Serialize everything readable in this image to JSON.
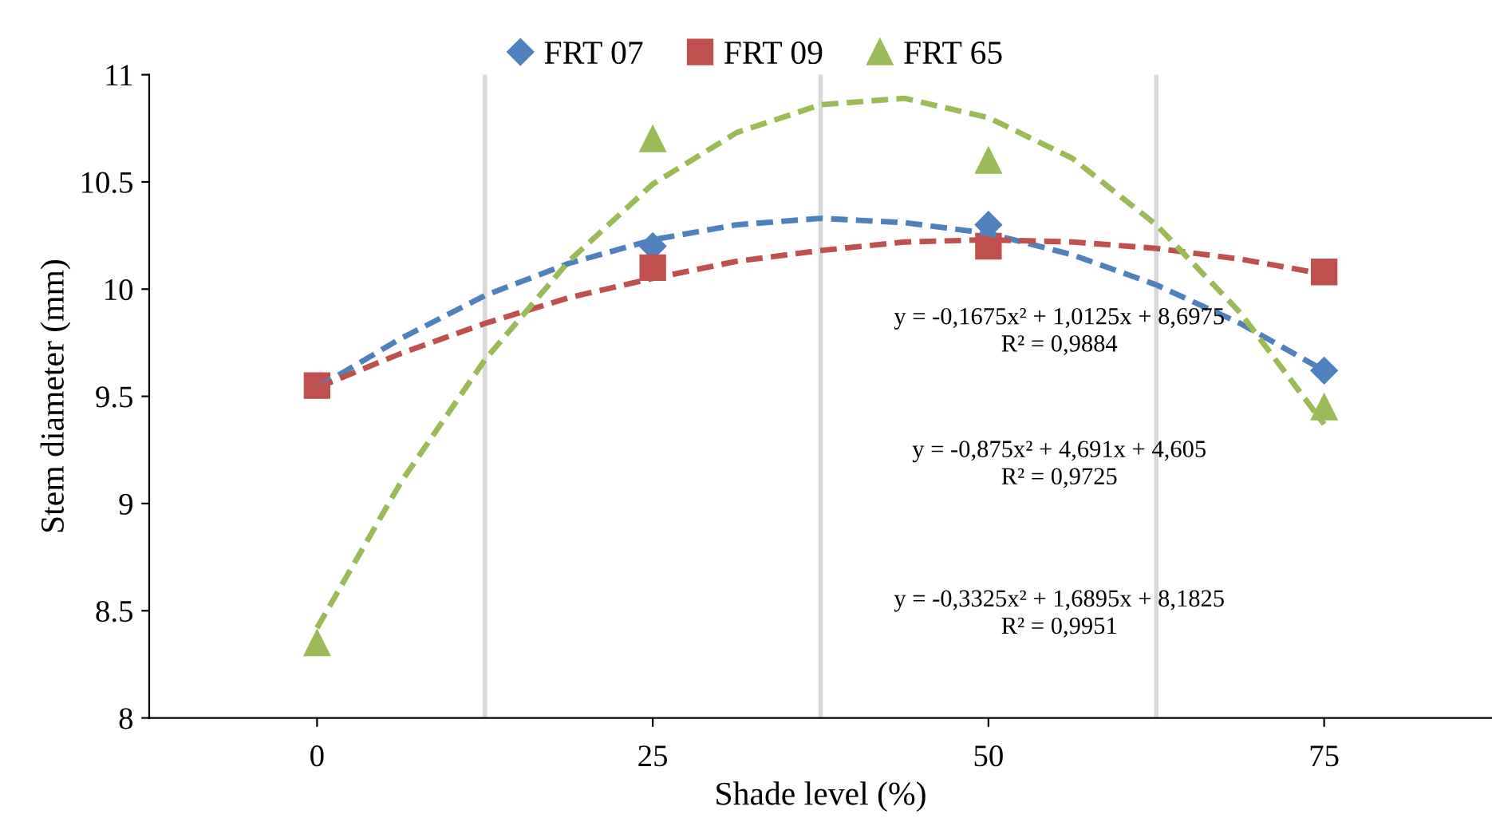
{
  "chart_data": {
    "type": "scatter",
    "xlabel": "Shade level (%)",
    "ylabel": "Stem diameter (mm)",
    "x": [
      0,
      25,
      50,
      75
    ],
    "xlim": [
      -12.5,
      87.5
    ],
    "xticks": [
      0,
      25,
      50,
      75
    ],
    "ylim": [
      8,
      11
    ],
    "yticks": [
      8,
      8.5,
      9,
      9.5,
      10,
      10.5,
      11
    ],
    "grid": false,
    "legend": "top",
    "ref_lines": [
      {
        "axis": "x",
        "value": 12.5,
        "color": "#d9d9d9"
      },
      {
        "axis": "x",
        "value": 37.5,
        "color": "#d9d9d9"
      },
      {
        "axis": "x",
        "value": 62.5,
        "color": "#d9d9d9"
      }
    ],
    "series": [
      {
        "name": "FRT 07",
        "marker": "diamond",
        "color": "#4f81bd",
        "values": [
          null,
          10.2,
          10.3,
          9.62
        ]
      },
      {
        "name": "FRT 09",
        "marker": "square",
        "color": "#c0504d",
        "values": [
          9.55,
          10.1,
          10.2,
          10.08
        ]
      },
      {
        "name": "FRT 65",
        "marker": "triangle",
        "color": "#9bbb59",
        "values": [
          8.35,
          10.7,
          10.6,
          9.45
        ]
      },
      {
        "type": "line",
        "line_style": "dashed",
        "color": "#4f81bd",
        "x": [
          0,
          6.25,
          12.5,
          18.75,
          25,
          31.25,
          37.5,
          43.75,
          50,
          56.25,
          62.5,
          68.75,
          75
        ],
        "values": [
          9.54,
          9.77,
          9.97,
          10.12,
          10.23,
          10.3,
          10.33,
          10.31,
          10.26,
          10.16,
          10.02,
          9.84,
          9.62
        ]
      },
      {
        "type": "line",
        "line_style": "dashed",
        "color": "#c0504d",
        "x": [
          0,
          6.25,
          12.5,
          18.75,
          25,
          31.25,
          37.5,
          43.75,
          50,
          56.25,
          62.5,
          68.75,
          75
        ],
        "values": [
          9.54,
          9.7,
          9.84,
          9.96,
          10.05,
          10.13,
          10.18,
          10.22,
          10.23,
          10.22,
          10.19,
          10.14,
          10.07
        ]
      },
      {
        "type": "line",
        "line_style": "dashed",
        "color": "#9bbb59",
        "x": [
          0,
          6.25,
          12.5,
          18.75,
          25,
          31.25,
          37.5,
          43.75,
          50,
          56.25,
          62.5,
          68.75,
          75
        ],
        "values": [
          8.42,
          9.1,
          9.67,
          10.13,
          10.49,
          10.73,
          10.86,
          10.89,
          10.8,
          10.61,
          10.3,
          9.89,
          9.37
        ]
      }
    ],
    "annotations": [
      "y = -0,1675x² + 1,0125x + 8,6975\nR² = 0,9884",
      "y = -0,875x² + 4,691x + 4,605\nR² = 0,9725",
      "y = -0,3325x² + 1,6895x + 8,1825\nR² = 0,9951"
    ]
  }
}
